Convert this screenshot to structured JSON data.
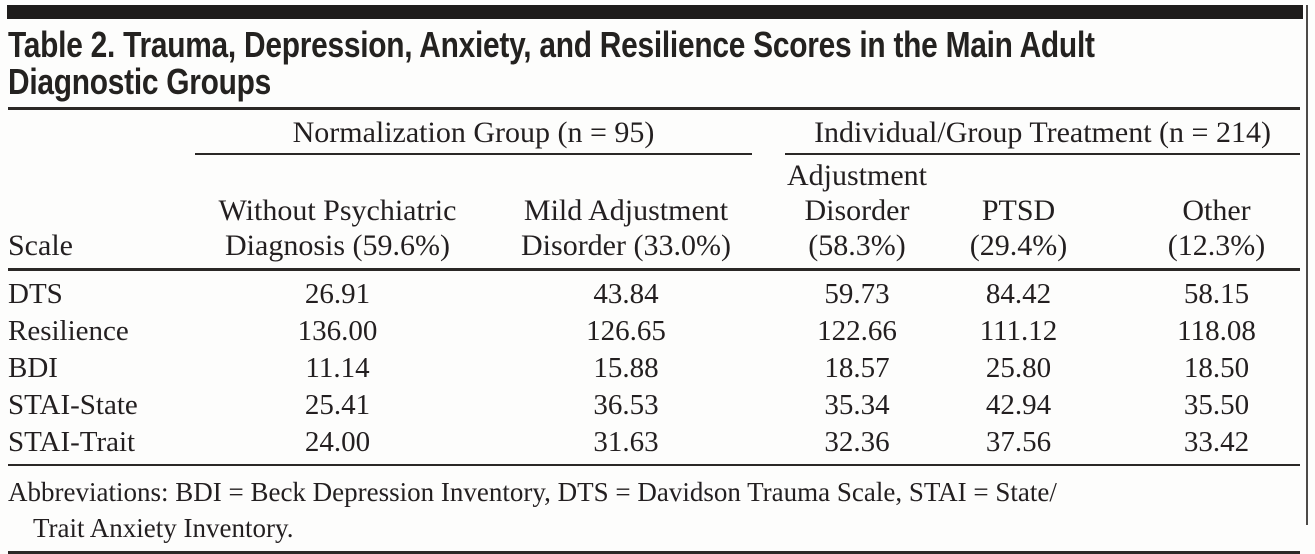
{
  "page": {
    "ink_color": "#231f20",
    "background_color": "#fdfdfc",
    "top_bar_color": "#1e1c1b"
  },
  "table": {
    "title": {
      "line1": "Table 2. Trauma, Depression, Anxiety, and Resilience Scores in the Main Adult",
      "line2": "Diagnostic Groups"
    },
    "group_headers": [
      {
        "label": "Normalization Group (n = 95)",
        "spans_columns": 2
      },
      {
        "label": "Individual/Group Treatment (n = 214)",
        "spans_columns": 3
      }
    ],
    "column_headers": [
      {
        "line1": "Scale",
        "line2": ""
      },
      {
        "line1": "Without Psychiatric",
        "line2": "Diagnosis (59.6%)"
      },
      {
        "line1": "Mild Adjustment",
        "line2": "Disorder (33.0%)"
      },
      {
        "line1": "Adjustment",
        "line2": "Disorder (58.3%)"
      },
      {
        "line1": "PTSD",
        "line2": "(29.4%)"
      },
      {
        "line1": "Other",
        "line2": "(12.3%)"
      }
    ],
    "rows": [
      {
        "scale": "DTS",
        "values": [
          "26.91",
          "43.84",
          "59.73",
          "84.42",
          "58.15"
        ]
      },
      {
        "scale": "Resilience",
        "values": [
          "136.00",
          "126.65",
          "122.66",
          "111.12",
          "118.08"
        ]
      },
      {
        "scale": "BDI",
        "values": [
          "11.14",
          "15.88",
          "18.57",
          "25.80",
          "18.50"
        ]
      },
      {
        "scale": "STAI-State",
        "values": [
          "25.41",
          "36.53",
          "35.34",
          "42.94",
          "35.50"
        ]
      },
      {
        "scale": "STAI-Trait",
        "values": [
          "24.00",
          "31.63",
          "32.36",
          "37.56",
          "33.42"
        ]
      }
    ],
    "footnote_lines": [
      "Abbreviations: BDI = Beck Depression Inventory, DTS = Davidson Trauma Scale, STAI = State/",
      "Trait Anxiety Inventory."
    ]
  }
}
